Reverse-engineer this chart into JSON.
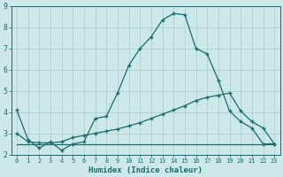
{
  "xlabel": "Humidex (Indice chaleur)",
  "bg_color": "#cce8e8",
  "grid_color": "#aacccc",
  "line_color": "#1a6b6b",
  "xlim": [
    -0.5,
    23.5
  ],
  "ylim": [
    2.0,
    9.0
  ],
  "xticks": [
    0,
    1,
    2,
    3,
    4,
    5,
    6,
    7,
    8,
    9,
    10,
    11,
    12,
    13,
    14,
    15,
    16,
    17,
    18,
    19,
    20,
    21,
    22,
    23
  ],
  "yticks": [
    2,
    3,
    4,
    5,
    6,
    7,
    8,
    9
  ],
  "line1_x": [
    0,
    1,
    2,
    3,
    4,
    5,
    6,
    7,
    8,
    9,
    10,
    11,
    12,
    13,
    14,
    15,
    16,
    17,
    18,
    19,
    20,
    21,
    22,
    23
  ],
  "line1_y": [
    4.1,
    2.7,
    2.3,
    2.6,
    2.2,
    2.5,
    2.6,
    3.7,
    3.8,
    4.9,
    6.2,
    7.0,
    7.55,
    8.35,
    8.65,
    8.6,
    7.0,
    6.75,
    5.5,
    4.05,
    3.55,
    3.25,
    2.5,
    2.5
  ],
  "line2_x": [
    0,
    1,
    2,
    3,
    4,
    5,
    6,
    7,
    8,
    9,
    10,
    11,
    12,
    13,
    14,
    15,
    16,
    17,
    18,
    19,
    20,
    21,
    22,
    23
  ],
  "line2_y": [
    3.0,
    2.6,
    2.55,
    2.55,
    2.6,
    2.8,
    2.9,
    3.0,
    3.1,
    3.2,
    3.35,
    3.5,
    3.7,
    3.9,
    4.1,
    4.3,
    4.55,
    4.7,
    4.8,
    4.9,
    4.05,
    3.55,
    3.25,
    2.5
  ],
  "line3_x": [
    0,
    1,
    2,
    3,
    4,
    5,
    6,
    7,
    8,
    9,
    10,
    11,
    12,
    13,
    14,
    15,
    16,
    17,
    18,
    19,
    20,
    21,
    22,
    23
  ],
  "line3_y": [
    2.5,
    2.5,
    2.5,
    2.5,
    2.5,
    2.5,
    2.5,
    2.5,
    2.5,
    2.5,
    2.5,
    2.5,
    2.5,
    2.5,
    2.5,
    2.5,
    2.5,
    2.5,
    2.5,
    2.5,
    2.5,
    2.5,
    2.5,
    2.5
  ]
}
